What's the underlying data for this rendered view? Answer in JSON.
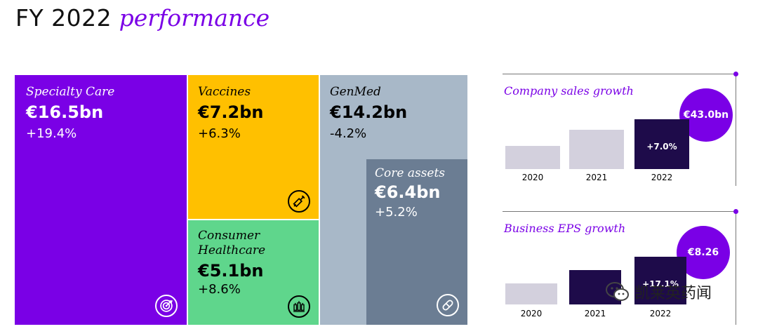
{
  "header": {
    "title_plain": "FY 2022",
    "title_italic": "performance"
  },
  "colors": {
    "specialty": "#7a00e6",
    "vaccines": "#ffc000",
    "consumer": "#5fd68c",
    "genmed": "#a8b8c8",
    "core": "#6b7d93",
    "bar_light": "#d3d0dd",
    "bar_dark": "#1e0b4a",
    "accent": "#7a00e6"
  },
  "tiles": {
    "specialty": {
      "segment": "Specialty Care",
      "value": "€16.5bn",
      "change": "+19.4%",
      "icon": "target-icon"
    },
    "vaccines": {
      "segment": "Vaccines",
      "value": "€7.2bn",
      "change": "+6.3%",
      "icon": "syringe-icon"
    },
    "consumer": {
      "segment": "Consumer Healthcare",
      "value": "€5.1bn",
      "change": "+8.6%",
      "icon": "products-icon"
    },
    "genmed": {
      "segment": "GenMed",
      "value": "€14.2bn",
      "change": "-4.2%",
      "icon": ""
    },
    "core": {
      "segment": "Core assets",
      "value": "€6.4bn",
      "change": "+5.2%",
      "icon": "pill-icon"
    }
  },
  "panels": {
    "sales": {
      "title": "Company sales growth",
      "bubble": "€43.0bn",
      "growth_label": "+7.0%"
    },
    "eps": {
      "title": "Business EPS growth",
      "bubble": "€8.26",
      "growth_label": "+17.1%"
    }
  },
  "watermark": {
    "text": "凯莱英药闻",
    "icon": "wechat-icon"
  },
  "chart_data": [
    {
      "type": "bar",
      "title": "Company sales growth",
      "categories": [
        "2020",
        "2021",
        "2022"
      ],
      "values": [
        36.0,
        40.2,
        43.0
      ],
      "annotations": {
        "2022": "+7.0%",
        "total": "€43.0bn"
      },
      "ylim": [
        30,
        45
      ],
      "grid": false
    },
    {
      "type": "bar",
      "title": "Business EPS growth",
      "categories": [
        "2020",
        "2021",
        "2022"
      ],
      "values": [
        5.9,
        7.06,
        8.26
      ],
      "annotations": {
        "2022": "+17.1%",
        "total": "€8.26"
      },
      "ylim": [
        4,
        8.5
      ],
      "grid": false
    }
  ]
}
